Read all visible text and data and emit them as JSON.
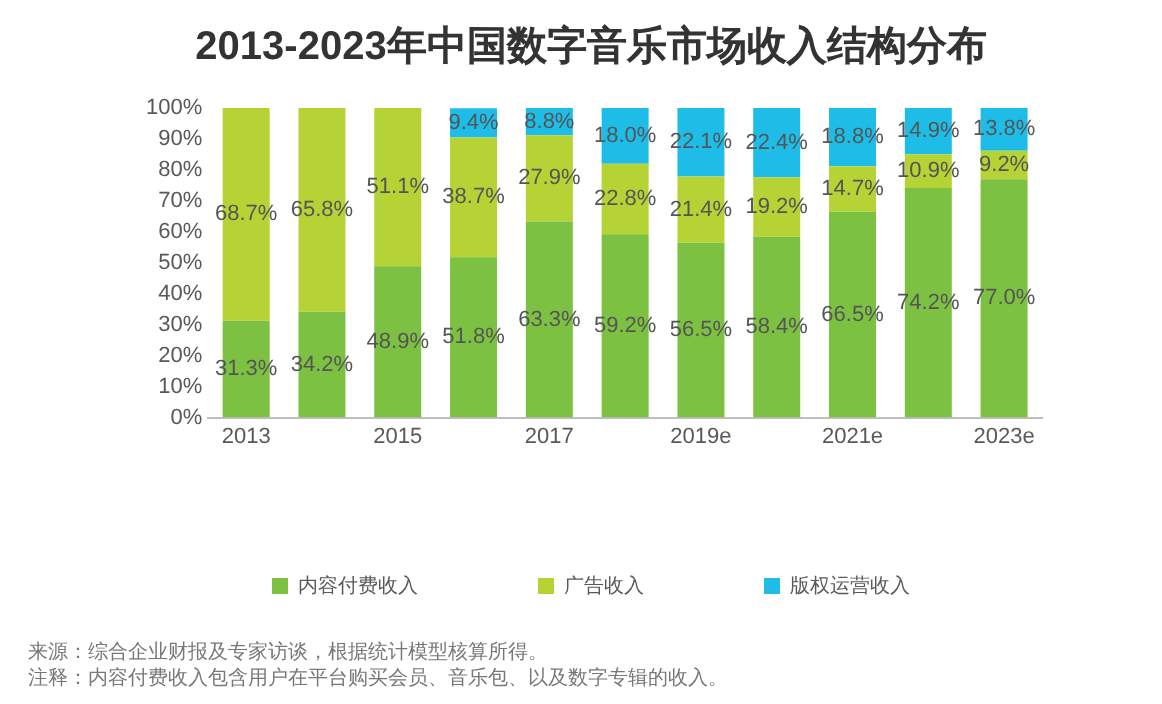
{
  "chart_data": {
    "type": "bar",
    "title": "2013-2023年中国数字音乐市场收入结构分布",
    "stacked": true,
    "categories": [
      "2013",
      null,
      "2015",
      null,
      "2017",
      null,
      "2019e",
      null,
      "2021e",
      null,
      "2023e"
    ],
    "series": [
      {
        "name": "内容付费收入",
        "color": "#7dc142",
        "values": [
          31.3,
          34.2,
          48.9,
          51.8,
          63.3,
          59.2,
          56.5,
          58.4,
          66.5,
          74.2,
          77.0
        ],
        "value_labels": [
          "31.3%",
          "34.2%",
          "48.9%",
          "51.8%",
          "63.3%",
          "59.2%",
          "56.5%",
          "58.4%",
          "66.5%",
          "74.2%",
          "77.0%"
        ]
      },
      {
        "name": "广告收入",
        "color": "#b5d334",
        "values": [
          68.7,
          65.8,
          51.1,
          38.7,
          27.9,
          22.8,
          21.4,
          19.2,
          14.7,
          10.9,
          9.2
        ],
        "value_labels": [
          "68.7%",
          "65.8%",
          "51.1%",
          "38.7%",
          "27.9%",
          "22.8%",
          "21.4%",
          "19.2%",
          "14.7%",
          "10.9%",
          "9.2%"
        ]
      },
      {
        "name": "版权运营收入",
        "color": "#1ebde8",
        "values": [
          null,
          null,
          null,
          9.4,
          8.8,
          18.0,
          22.1,
          22.4,
          18.8,
          14.9,
          13.8
        ],
        "value_labels": [
          null,
          null,
          null,
          "9.4%",
          "8.8%",
          "18.0%",
          "22.1%",
          "22.4%",
          "18.8%",
          "14.9%",
          "13.8%"
        ]
      }
    ],
    "ylim": [
      0,
      100
    ],
    "yticks": [
      {
        "value": 0,
        "label": "0%"
      },
      {
        "value": 10,
        "label": "10%"
      },
      {
        "value": 20,
        "label": "20%"
      },
      {
        "value": 30,
        "label": "30%"
      },
      {
        "value": 40,
        "label": "40%"
      },
      {
        "value": 50,
        "label": "50%"
      },
      {
        "value": 60,
        "label": "60%"
      },
      {
        "value": 70,
        "label": "70%"
      },
      {
        "value": 80,
        "label": "80%"
      },
      {
        "value": 90,
        "label": "90%"
      },
      {
        "value": 100,
        "label": "100%"
      }
    ],
    "grid": false,
    "legend": "bottom",
    "annotations": [
      "来源：综合企业财报及专家访谈，根据统计模型核算所得。",
      "注释：内容付费收入包含用户在平台购买会员、音乐包、以及数字专辑的收入。"
    ]
  }
}
